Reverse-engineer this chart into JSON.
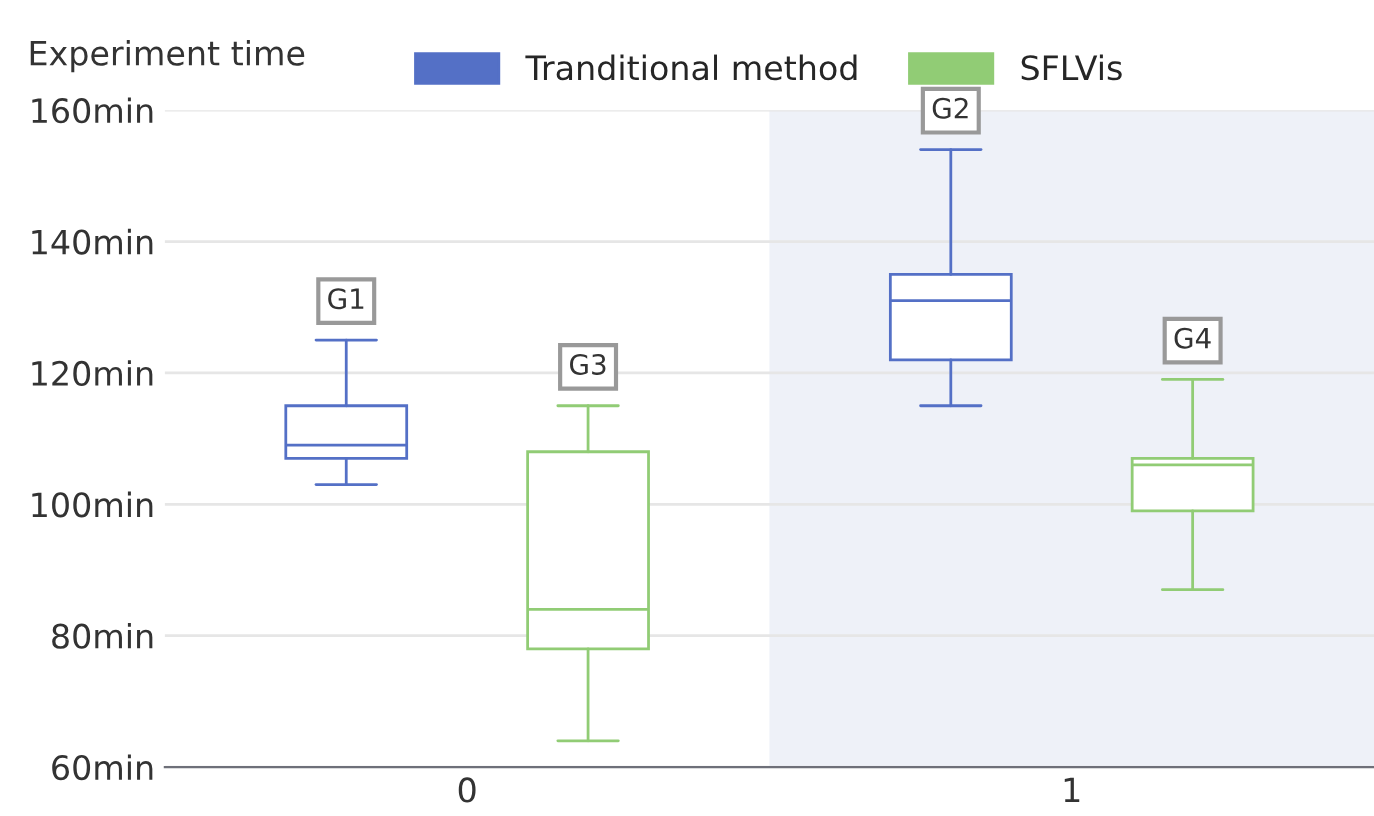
{
  "chart_data": {
    "type": "box",
    "ylabel": "Experiment time",
    "categories": [
      "0",
      "1"
    ],
    "series": [
      {
        "name": "Tranditional method",
        "color": "#5470c6",
        "boxes": [
          {
            "low": 103,
            "q1": 107,
            "median": 109,
            "q3": 115,
            "high": 125
          },
          {
            "low": 115,
            "q1": 122,
            "median": 131,
            "q3": 135,
            "high": 154
          }
        ]
      },
      {
        "name": "SFLVis",
        "color": "#91cc75",
        "boxes": [
          {
            "low": 64,
            "q1": 78,
            "median": 84,
            "q3": 108,
            "high": 115
          },
          {
            "low": 87,
            "q1": 99,
            "median": 106,
            "q3": 107,
            "high": 119
          }
        ]
      }
    ],
    "ylim": [
      60,
      160
    ],
    "yticks": [
      {
        "value": 60,
        "label": "60min"
      },
      {
        "value": 80,
        "label": "80min"
      },
      {
        "value": 100,
        "label": "100min"
      },
      {
        "value": 120,
        "label": "120min"
      },
      {
        "value": 140,
        "label": "140min"
      },
      {
        "value": 160,
        "label": "160min"
      }
    ],
    "annotations": [
      "G1",
      "G3",
      "G2",
      "G4"
    ],
    "bands": [
      {
        "axis": "x",
        "from": "1",
        "to": "1",
        "color": "#eef1f8"
      }
    ],
    "grid": "y",
    "legend": "top"
  }
}
